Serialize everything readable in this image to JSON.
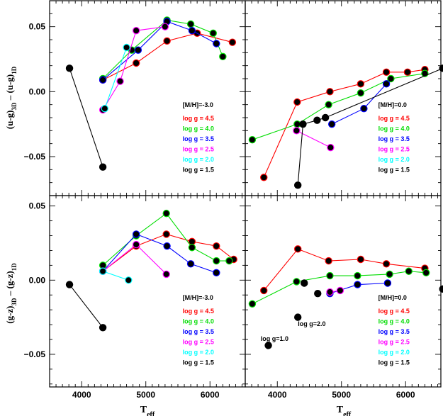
{
  "figure": {
    "x_axis_label": "T",
    "x_axis_label_sub": "eff",
    "top_row_ylabel": {
      "pre": "(u-g)",
      "sub1": "3D",
      "mid": " – (u-g)",
      "sub2": "1D"
    },
    "bottom_row_ylabel": {
      "pre": "(g-z)",
      "sub1": "3D",
      "mid": " – (g-z)",
      "sub2": "1D"
    }
  },
  "chart_data": [
    {
      "type": "line",
      "panel": "top-left",
      "title": "",
      "xlabel": "",
      "ylabel": "(u-g)3D – (u-g)1D",
      "xlim": [
        3500,
        6550
      ],
      "ylim": [
        -0.08,
        0.07
      ],
      "xticks": [
        4000,
        5000,
        6000
      ],
      "xtick_labels": [
        "",
        "",
        ""
      ],
      "yticks": [
        -0.05,
        0.0,
        0.05
      ],
      "ytick_labels": [
        "−0.05",
        "0.00",
        "0.05"
      ],
      "legend": {
        "placement": "bottom-right",
        "title": "[M/H]=-3.0",
        "entries": [
          {
            "label": "log g = 4.5",
            "color": "#ff0000"
          },
          {
            "label": "log g = 4.0",
            "color": "#00dd00"
          },
          {
            "label": "log g = 3.5",
            "color": "#0000ff"
          },
          {
            "label": "log g = 2.5",
            "color": "#ff00ff"
          },
          {
            "label": "log g = 2.0",
            "color": "#00ffff"
          },
          {
            "label": "log g = 1.5",
            "color": "#000000"
          }
        ]
      },
      "annotations": [],
      "series": [
        {
          "name": "log g = 4.5",
          "color": "#ff0000",
          "x": [
            4330,
            4850,
            5330,
            5800,
            6350
          ],
          "y": [
            0.009,
            0.022,
            0.039,
            0.045,
            0.038
          ]
        },
        {
          "name": "log g = 4.0",
          "color": "#00dd00",
          "x": [
            4330,
            4780,
            5330,
            5700,
            6050,
            6200
          ],
          "y": [
            0.01,
            0.032,
            0.055,
            0.052,
            0.045,
            0.027
          ]
        },
        {
          "name": "log g = 3.5",
          "color": "#0000ff",
          "x": [
            4330,
            4880,
            5330,
            5720,
            6100
          ],
          "y": [
            0.009,
            0.032,
            0.054,
            0.047,
            0.037
          ]
        },
        {
          "name": "log g = 2.5",
          "color": "#ff00ff",
          "x": [
            4330,
            4600,
            4850,
            5300
          ],
          "y": [
            -0.014,
            0.008,
            0.047,
            0.05
          ]
        },
        {
          "name": "log g = 2.0",
          "color": "#00ffff",
          "x": [
            4360,
            4700
          ],
          "y": [
            -0.013,
            0.034
          ]
        },
        {
          "name": "log g = 1.5",
          "color": "#000000",
          "x": [
            3810,
            4330
          ],
          "y": [
            0.018,
            -0.058
          ]
        }
      ]
    },
    {
      "type": "line",
      "panel": "top-right",
      "title": "",
      "xlabel": "",
      "ylabel": "",
      "xlim": [
        3500,
        6550
      ],
      "ylim": [
        -0.08,
        0.07
      ],
      "xticks": [
        4000,
        5000,
        6000
      ],
      "xtick_labels": [
        "",
        "",
        ""
      ],
      "yticks": [
        -0.05,
        0.0,
        0.05
      ],
      "ytick_labels": [
        "",
        "",
        ""
      ],
      "legend": {
        "placement": "bottom-right",
        "title": "[M/H]=0.0",
        "entries": [
          {
            "label": "log g = 4.5",
            "color": "#ff0000"
          },
          {
            "label": "log g = 4.0",
            "color": "#00dd00"
          },
          {
            "label": "log g = 3.5",
            "color": "#0000ff"
          },
          {
            "label": "log g = 2.5",
            "color": "#ff00ff"
          },
          {
            "label": "log g = 2.0",
            "color": "#00ffff"
          },
          {
            "label": "log g = 1.5",
            "color": "#000000"
          }
        ]
      },
      "annotations": [],
      "series": [
        {
          "name": "log g = 4.5",
          "color": "#ff0000",
          "x": [
            3790,
            4310,
            4820,
            5300,
            5700,
            6030,
            6300
          ],
          "y": [
            -0.066,
            -0.008,
            0.0,
            0.006,
            0.015,
            0.015,
            0.017
          ]
        },
        {
          "name": "log g = 4.0",
          "color": "#00dd00",
          "x": [
            3610,
            4310,
            4800,
            5300,
            5770,
            6300
          ],
          "y": [
            -0.037,
            -0.025,
            -0.01,
            -0.001,
            0.01,
            0.014
          ]
        },
        {
          "name": "log g = 3.5",
          "color": "#0000ff",
          "x": [
            4850,
            5350,
            5700
          ],
          "y": [
            -0.025,
            -0.013,
            0.006
          ]
        },
        {
          "name": "log g = 2.5",
          "color": "#ff00ff",
          "x": [
            4300,
            4830
          ],
          "y": [
            -0.03,
            -0.043
          ]
        },
        {
          "name": "log g = 2.0",
          "color": "#00ffff",
          "x": [],
          "y": []
        },
        {
          "name": "log g = 1.5",
          "color": "#000000",
          "x": [
            4320,
            4400,
            4620,
            4750,
            6580
          ],
          "y": [
            -0.072,
            -0.025,
            -0.022,
            -0.02,
            0.018
          ]
        }
      ]
    },
    {
      "type": "line",
      "panel": "bottom-left",
      "title": "",
      "xlabel": "Teff",
      "ylabel": "(g-z)3D – (g-z)1D",
      "xlim": [
        3500,
        6550
      ],
      "ylim": [
        -0.072,
        0.057
      ],
      "xticks": [
        4000,
        5000,
        6000
      ],
      "xtick_labels": [
        "4000",
        "5000",
        "6000"
      ],
      "yticks": [
        -0.05,
        0.0,
        0.05
      ],
      "ytick_labels": [
        "−0.05",
        "0.00",
        "0.05"
      ],
      "legend": {
        "placement": "bottom-right",
        "title": "[M/H]=-3.0",
        "entries": [
          {
            "label": "log g = 4.5",
            "color": "#ff0000"
          },
          {
            "label": "log g = 4.0",
            "color": "#00dd00"
          },
          {
            "label": "log g = 3.5",
            "color": "#0000ff"
          },
          {
            "label": "log g = 2.5",
            "color": "#ff00ff"
          },
          {
            "label": "log g = 2.0",
            "color": "#00ffff"
          },
          {
            "label": "log g = 1.5",
            "color": "#000000"
          }
        ]
      },
      "annotations": [],
      "series": [
        {
          "name": "log g = 4.5",
          "color": "#ff0000",
          "x": [
            4330,
            4850,
            5320,
            5720,
            6100,
            6370
          ],
          "y": [
            0.006,
            0.023,
            0.031,
            0.026,
            0.023,
            0.014
          ]
        },
        {
          "name": "log g = 4.0",
          "color": "#00dd00",
          "x": [
            4330,
            4850,
            5320,
            5720,
            6100,
            6300
          ],
          "y": [
            0.01,
            0.03,
            0.045,
            0.022,
            0.013,
            0.013
          ]
        },
        {
          "name": "log g = 3.5",
          "color": "#0000ff",
          "x": [
            4330,
            4850,
            5330,
            5700,
            6100
          ],
          "y": [
            0.006,
            0.031,
            0.023,
            0.011,
            0.005
          ]
        },
        {
          "name": "log g = 2.5",
          "color": "#ff00ff",
          "x": [
            4330,
            4850,
            5320
          ],
          "y": [
            0.006,
            0.024,
            0.004
          ]
        },
        {
          "name": "log g = 2.0",
          "color": "#00ffff",
          "x": [
            4330,
            4730
          ],
          "y": [
            0.006,
            0.0
          ]
        },
        {
          "name": "log g = 1.5",
          "color": "#000000",
          "x": [
            3810,
            4330
          ],
          "y": [
            -0.003,
            -0.032
          ]
        }
      ]
    },
    {
      "type": "line",
      "panel": "bottom-right",
      "title": "",
      "xlabel": "Teff",
      "ylabel": "",
      "xlim": [
        3500,
        6550
      ],
      "ylim": [
        -0.072,
        0.057
      ],
      "xticks": [
        4000,
        5000,
        6000
      ],
      "xtick_labels": [
        "4000",
        "5000",
        "6000"
      ],
      "yticks": [
        -0.05,
        0.0,
        0.05
      ],
      "ytick_labels": [
        "",
        "",
        ""
      ],
      "legend": {
        "placement": "bottom-right",
        "title": "[M/H]=0.0",
        "entries": [
          {
            "label": "log g = 4.5",
            "color": "#ff0000"
          },
          {
            "label": "log g = 4.0",
            "color": "#00dd00"
          },
          {
            "label": "log g = 3.5",
            "color": "#0000ff"
          },
          {
            "label": "log g = 2.5",
            "color": "#ff00ff"
          },
          {
            "label": "log g = 2.0",
            "color": "#00ffff"
          },
          {
            "label": "log g = 1.5",
            "color": "#000000"
          }
        ]
      },
      "annotations": [
        {
          "text": "log g=2.0",
          "x": 4320,
          "y": -0.031
        },
        {
          "text": "log g=1.0",
          "x": 3740,
          "y": -0.041
        }
      ],
      "series": [
        {
          "name": "log g = 4.5",
          "color": "#ff0000",
          "x": [
            3790,
            4320,
            4800,
            5300,
            5700,
            6300
          ],
          "y": [
            -0.007,
            0.021,
            0.013,
            0.014,
            0.011,
            0.008
          ]
        },
        {
          "name": "log g = 4.0",
          "color": "#00dd00",
          "x": [
            3610,
            4300,
            4820,
            5250,
            5750,
            6050,
            6320
          ],
          "y": [
            -0.016,
            -0.001,
            0.003,
            0.003,
            0.004,
            0.006,
            0.005
          ]
        },
        {
          "name": "log g = 3.5",
          "color": "#0000ff",
          "x": [
            4820,
            5250,
            5720
          ],
          "y": [
            -0.009,
            -0.003,
            -0.002
          ]
        },
        {
          "name": "log g = 2.5",
          "color": "#ff00ff",
          "x": [
            4820,
            4980
          ],
          "y": [
            -0.008,
            -0.007
          ]
        },
        {
          "name": "log g = 2.0",
          "color": "#00ffff",
          "x": [],
          "y": []
        },
        {
          "name": "log g = 1.5",
          "color": "#000000",
          "x": [
            4420,
            4630,
            6580,
            4320,
            3860
          ],
          "y": [
            -0.002,
            -0.009,
            -0.006,
            -0.025,
            -0.044
          ],
          "markers_only": true
        }
      ]
    }
  ]
}
